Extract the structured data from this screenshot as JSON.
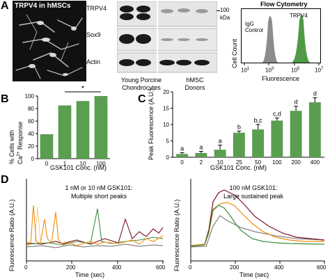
{
  "panelA": {
    "label": "A",
    "micro_title": "TRPV4 in hMSCs",
    "blot_rows": [
      "TRPV4",
      "Sox9",
      "Actin"
    ],
    "marker_value": "100",
    "marker_unit": "kDa",
    "group_left": [
      "Young Porcine",
      "Chondrocytes"
    ],
    "group_right": [
      "hMSC",
      "Donors"
    ],
    "flow": {
      "title": "Flow Cytometry",
      "ylabel": "Cell Count",
      "xlabel": "Fluorescence",
      "ticks": [
        "10",
        "10",
        "10",
        "10"
      ],
      "tick_exps": [
        "1",
        "3",
        "5",
        "7"
      ],
      "igg_label": [
        "IgG",
        "Control"
      ],
      "trpv4_label": "TRPV4",
      "colors": {
        "igg": "#8c8c8c",
        "trpv4": "#4f9a45"
      }
    }
  },
  "panelB": {
    "label": "B",
    "ylabel_line1": "% Cells with",
    "ylabel_line2": "Ca",
    "ylabel_sup": "2+",
    "ylabel_rest": " Response",
    "xlabel": "GSK101 Conc. (nM)",
    "sig": "*",
    "yticks": [
      "0",
      "20",
      "40",
      "60",
      "80",
      "100"
    ]
  },
  "panelC": {
    "label": "C",
    "ylabel": "Peak Fluorescence (A.U.)",
    "xlabel": "GSK101 Conc. (nM)",
    "yticks": [
      "0",
      "5",
      "10",
      "15",
      "20"
    ],
    "letters": [
      "a",
      "a",
      "a",
      "b",
      "b,c",
      "c,d",
      "d",
      "d"
    ]
  },
  "panelD": {
    "label": "D",
    "left_title": [
      "1 nM or 10 nM GSK101:",
      "Multiple short peaks"
    ],
    "right_title": [
      "100 nM GSK101:",
      "Large sustained peak"
    ],
    "ylabel": "Fluorescence Ratio (A.U.)",
    "xlabel": "Time (sec)",
    "xticks": [
      "0",
      "200",
      "400",
      "600"
    ],
    "trace_colors": [
      "#f08a0a",
      "#7d1020",
      "#3d8a3a",
      "#6a6a6a"
    ]
  },
  "chart_data": [
    {
      "type": "bar",
      "panel": "B",
      "categories": [
        "0",
        "1",
        "10",
        "100"
      ],
      "values": [
        39,
        85,
        92,
        100
      ],
      "title": "",
      "xlabel": "GSK101 Conc. (nM)",
      "ylabel": "% Cells with Ca2+ Response",
      "ylim": [
        0,
        100
      ],
      "color": "#5a9e50"
    },
    {
      "type": "bar",
      "panel": "C",
      "categories": [
        "0",
        "2",
        "10",
        "25",
        "50",
        "100",
        "200",
        "400"
      ],
      "values": [
        1.0,
        1.3,
        2.3,
        7.5,
        8.5,
        11.2,
        14.2,
        16.8
      ],
      "errors": [
        0.4,
        0.5,
        1.4,
        0.5,
        1.5,
        0.8,
        1.4,
        1.4
      ],
      "annotations": [
        "a",
        "a",
        "a",
        "b",
        "b,c",
        "c,d",
        "d",
        "d"
      ],
      "title": "",
      "xlabel": "GSK101 Conc. (nM)",
      "ylabel": "Peak Fluorescence (A.U.)",
      "ylim": [
        0,
        20
      ],
      "color": "#5a9e50"
    }
  ]
}
